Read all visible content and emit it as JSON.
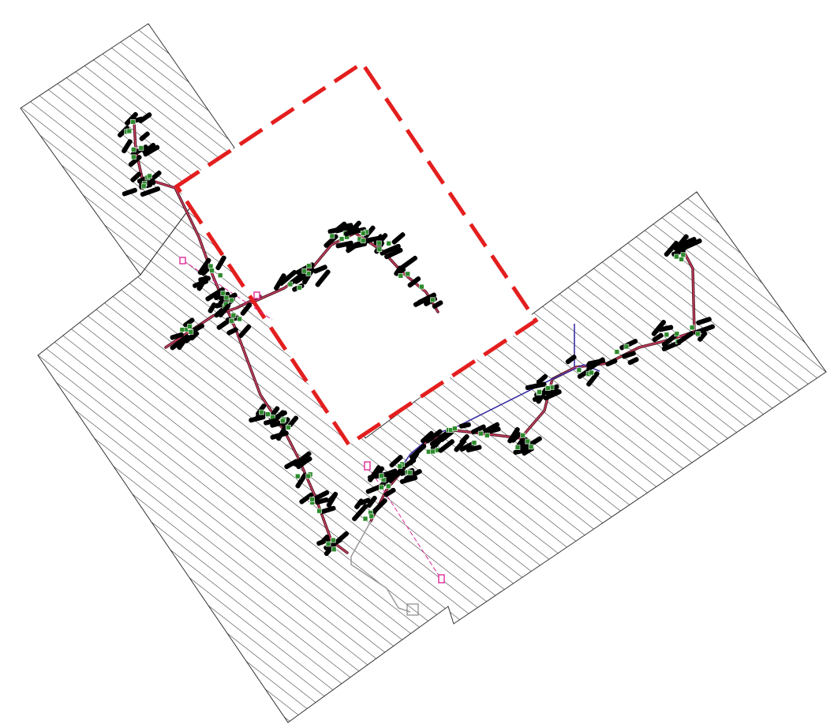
{
  "drawing": {
    "hatch_color": "#222222",
    "boundary_color": "#e41e1e",
    "trunk_color": "#5a1f2a",
    "accent_line_color": "#e0406a",
    "fitting_color": "#2e8b2e",
    "section_color": "#e02a9a",
    "element_color": "#000000"
  }
}
